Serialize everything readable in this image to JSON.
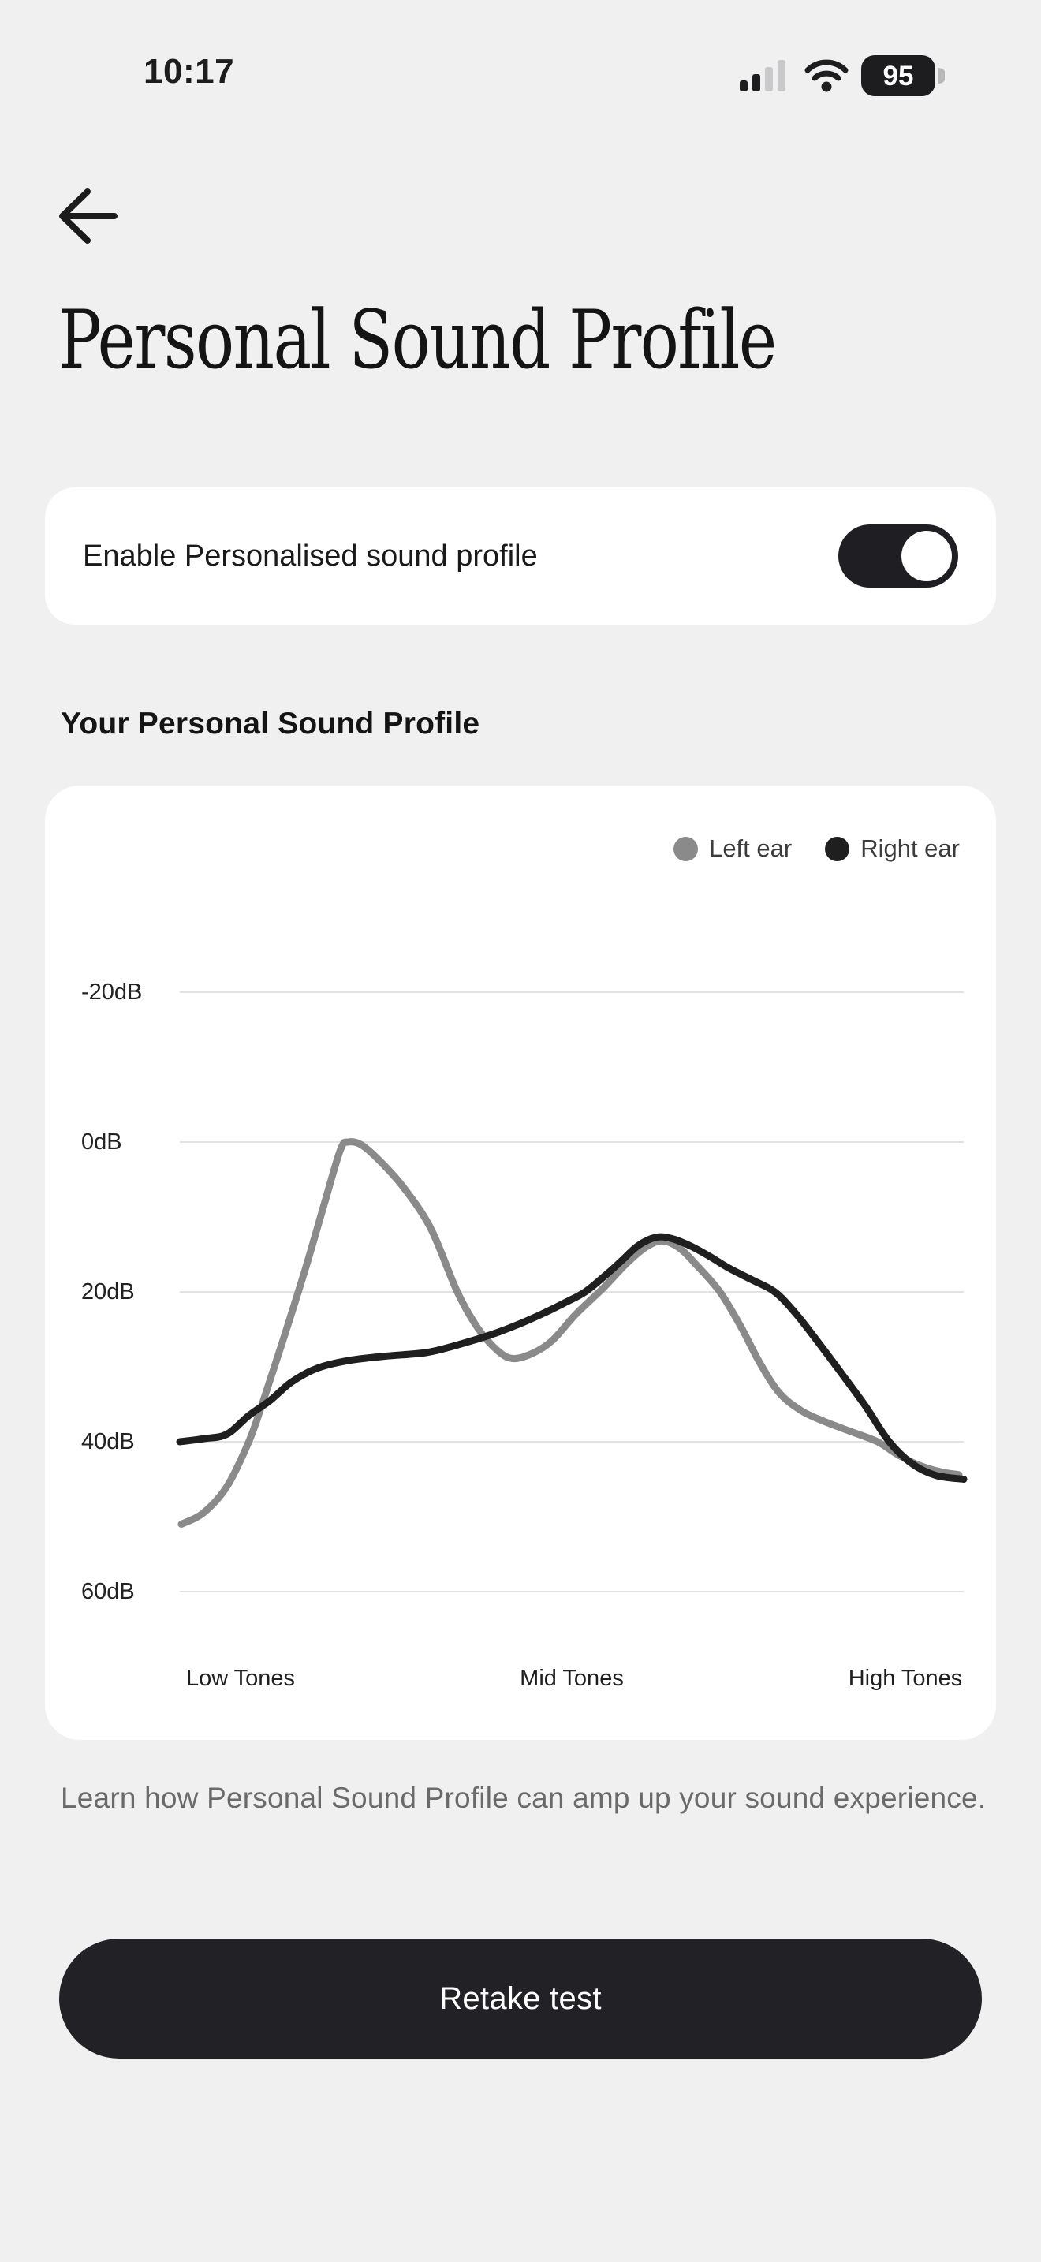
{
  "status_bar": {
    "time": "10:17",
    "battery_level": "95",
    "cellular_bars_active": 2,
    "cellular_bars_total": 4
  },
  "header": {
    "title": "Personal Sound Profile"
  },
  "toggle_card": {
    "label": "Enable Personalised sound profile",
    "enabled": true
  },
  "section": {
    "heading": "Your Personal Sound Profile"
  },
  "chart_data": {
    "type": "line",
    "title": "Your Personal Sound Profile",
    "x_categories": [
      "Low Tones",
      "Mid Tones",
      "High Tones"
    ],
    "y_ticks": [
      "-20dB",
      "0dB",
      "20dB",
      "40dB",
      "60dB"
    ],
    "y_axis": {
      "unit": "dB",
      "min": -20,
      "max": 60,
      "tick_interval": 20,
      "inverted": true
    },
    "grid": true,
    "legend_position": "top-right",
    "series": [
      {
        "name": "Left ear",
        "color": "#8a8a8a",
        "points": [
          [
            0.2,
            51
          ],
          [
            3,
            49.5
          ],
          [
            6,
            46
          ],
          [
            8.8,
            40
          ],
          [
            10.5,
            35
          ],
          [
            13,
            27
          ],
          [
            16,
            17
          ],
          [
            18.5,
            8
          ],
          [
            20.5,
            1
          ],
          [
            21.5,
            0
          ],
          [
            23.2,
            0.4
          ],
          [
            25.5,
            2.5
          ],
          [
            28.5,
            6
          ],
          [
            32,
            11.5
          ],
          [
            35.4,
            20
          ],
          [
            38,
            24.8
          ],
          [
            40.5,
            27.8
          ],
          [
            42.5,
            28.9
          ],
          [
            45,
            28.2
          ],
          [
            47.5,
            26.5
          ],
          [
            50.5,
            23
          ],
          [
            54,
            19.5
          ],
          [
            57,
            16.2
          ],
          [
            59.5,
            14
          ],
          [
            61.6,
            13.2
          ],
          [
            63.8,
            14.2
          ],
          [
            66,
            16.5
          ],
          [
            68.9,
            20
          ],
          [
            71.5,
            24.5
          ],
          [
            74,
            29.5
          ],
          [
            76.5,
            33.5
          ],
          [
            79.2,
            35.8
          ],
          [
            82,
            37.2
          ],
          [
            85.5,
            38.6
          ],
          [
            89,
            40
          ],
          [
            91.4,
            41.6
          ],
          [
            94,
            43
          ],
          [
            97,
            44
          ],
          [
            99.4,
            44.4
          ]
        ]
      },
      {
        "name": "Right ear",
        "color": "#1f1f1f",
        "points": [
          [
            0,
            40
          ],
          [
            3,
            39.6
          ],
          [
            6,
            39
          ],
          [
            8.8,
            36.5
          ],
          [
            11.5,
            34.5
          ],
          [
            14.3,
            32
          ],
          [
            17.5,
            30.2
          ],
          [
            21.3,
            29.2
          ],
          [
            26,
            28.6
          ],
          [
            31.4,
            28.1
          ],
          [
            35,
            27.2
          ],
          [
            40,
            25.6
          ],
          [
            43.5,
            24.2
          ],
          [
            46.5,
            22.8
          ],
          [
            49,
            21.5
          ],
          [
            51.7,
            20
          ],
          [
            54.5,
            17.6
          ],
          [
            56.5,
            15.7
          ],
          [
            58.5,
            13.8
          ],
          [
            60.8,
            12.7
          ],
          [
            62.8,
            12.9
          ],
          [
            65,
            13.8
          ],
          [
            67.5,
            15.2
          ],
          [
            70,
            16.8
          ],
          [
            73,
            18.4
          ],
          [
            75.9,
            20
          ],
          [
            78.5,
            22.8
          ],
          [
            81.5,
            26.8
          ],
          [
            84.5,
            31
          ],
          [
            87.5,
            35.3
          ],
          [
            90.5,
            40
          ],
          [
            93.5,
            43
          ],
          [
            96.5,
            44.5
          ],
          [
            100,
            45
          ]
        ]
      }
    ]
  },
  "footer": {
    "description": "Learn how Personal Sound Profile can amp up your sound experience.",
    "button_label": "Retake test"
  },
  "colors": {
    "background": "#f0f0f0",
    "card": "#ffffff",
    "dark": "#222226",
    "grid": "#e3e3e3",
    "muted_text": "#6a6a6a"
  }
}
